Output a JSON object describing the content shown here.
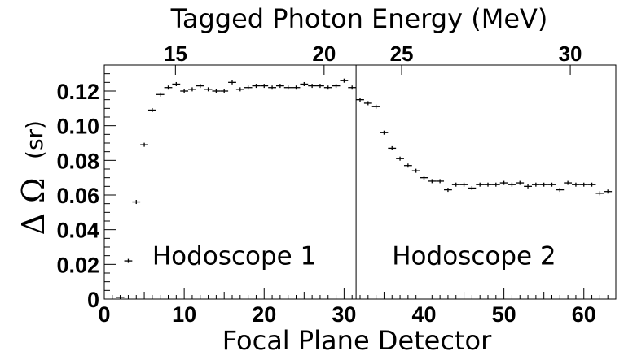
{
  "chart_data": {
    "type": "scatter",
    "title": "Tagged Photon Energy (MeV)",
    "xlabel": "Focal Plane Detector",
    "ylabel_symbol": "Δ Ω",
    "ylabel_unit": "(sr)",
    "xlim": [
      0,
      64
    ],
    "ylim": [
      0,
      0.135
    ],
    "x_ticks": [
      0,
      10,
      20,
      30,
      40,
      50,
      60
    ],
    "y_ticks": [
      0,
      0.02,
      0.04,
      0.06,
      0.08,
      0.1,
      0.12
    ],
    "y_tick_labels": [
      "0",
      "0.02",
      "0.04",
      "0.06",
      "0.08",
      "0.10",
      "0.12"
    ],
    "top_axis": {
      "label": "Tagged Photon Energy (MeV)",
      "ticks": [
        {
          "label": "15",
          "x": 8.9
        },
        {
          "label": "20",
          "x": 27.5
        },
        {
          "label": "25",
          "x": 37.2
        },
        {
          "label": "30",
          "x": 58.3
        }
      ]
    },
    "divider_x": 31.5,
    "annotations": [
      {
        "text": "Hodoscope 1",
        "x": 6,
        "y": 0.025
      },
      {
        "text": "Hodoscope 2",
        "x": 36,
        "y": 0.025
      }
    ],
    "x_error_half_width": 0.5,
    "series": [
      {
        "x": [
          2,
          3,
          4,
          5,
          6,
          7,
          8,
          9,
          10,
          11,
          12,
          13,
          14,
          15,
          16,
          17,
          18,
          19,
          20,
          21,
          22,
          23,
          24,
          25,
          26,
          27,
          28,
          29,
          30,
          31,
          32,
          33,
          34,
          35,
          36,
          37,
          38,
          39,
          40,
          41,
          42,
          43,
          44,
          45,
          46,
          47,
          48,
          49,
          50,
          51,
          52,
          53,
          54,
          55,
          56,
          57,
          58,
          59,
          60,
          61,
          62,
          63
        ],
        "y": [
          0.001,
          0.022,
          0.056,
          0.089,
          0.109,
          0.118,
          0.122,
          0.124,
          0.12,
          0.121,
          0.123,
          0.121,
          0.12,
          0.12,
          0.125,
          0.121,
          0.122,
          0.123,
          0.123,
          0.122,
          0.123,
          0.122,
          0.122,
          0.124,
          0.123,
          0.123,
          0.122,
          0.123,
          0.126,
          0.122,
          0.115,
          0.113,
          0.111,
          0.096,
          0.087,
          0.081,
          0.077,
          0.074,
          0.07,
          0.068,
          0.068,
          0.063,
          0.066,
          0.066,
          0.064,
          0.066,
          0.066,
          0.066,
          0.067,
          0.066,
          0.067,
          0.065,
          0.066,
          0.066,
          0.066,
          0.063,
          0.067,
          0.066,
          0.066,
          0.066,
          0.061,
          0.062
        ]
      }
    ]
  }
}
